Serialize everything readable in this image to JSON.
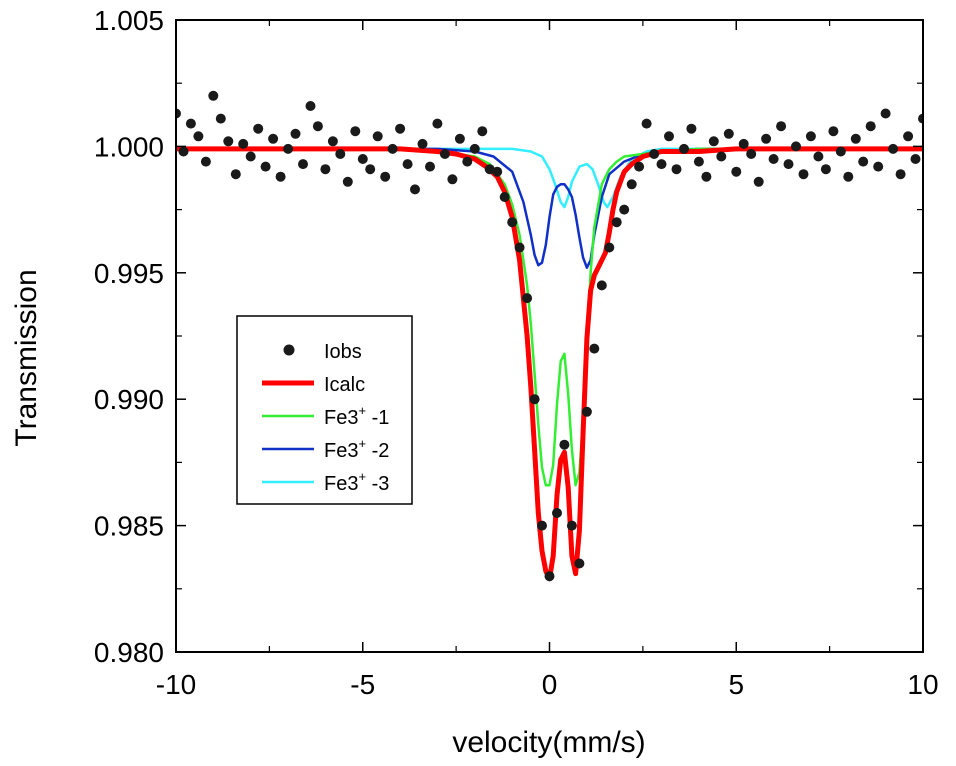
{
  "chart_data": {
    "type": "line",
    "xlabel": "velocity(mm/s)",
    "ylabel": "Transmission",
    "xlim": [
      -10,
      10
    ],
    "ylim": [
      0.98,
      1.005
    ],
    "x_ticks": [
      -10,
      -5,
      0,
      5,
      10
    ],
    "x_tick_labels": [
      "-10",
      "-5",
      "0",
      "5",
      "10"
    ],
    "y_ticks": [
      0.98,
      0.985,
      0.99,
      0.995,
      1.0,
      1.005
    ],
    "y_tick_labels": [
      "0.980",
      "0.985",
      "0.990",
      "0.995",
      "1.000",
      "1.005"
    ],
    "grid": false,
    "legend_position": "middle-left",
    "legend": [
      {
        "key": "iobs",
        "label": "Iobs",
        "style": "marker",
        "color": "#1a1a1a"
      },
      {
        "key": "icalc",
        "label": "Icalc",
        "style": "line",
        "color": "#ff0000"
      },
      {
        "key": "fe1",
        "label": "Fe3",
        "sup": "+",
        "suffix": " -1",
        "style": "line",
        "color": "#33ee33"
      },
      {
        "key": "fe2",
        "label": "Fe3",
        "sup": "+",
        "suffix": " -2",
        "style": "line",
        "color": "#1030c8"
      },
      {
        "key": "fe3",
        "label": "Fe3",
        "sup": "+",
        "suffix": " -3",
        "style": "line",
        "color": "#33eeff"
      }
    ],
    "series": [
      {
        "name": "Iobs",
        "kind": "scatter",
        "color": "#1a1a1a",
        "x": [
          -10,
          -9.8,
          -9.6,
          -9.4,
          -9.2,
          -9.0,
          -8.8,
          -8.6,
          -8.4,
          -8.2,
          -8.0,
          -7.8,
          -7.6,
          -7.4,
          -7.2,
          -7.0,
          -6.8,
          -6.6,
          -6.4,
          -6.2,
          -6.0,
          -5.8,
          -5.6,
          -5.4,
          -5.2,
          -5.0,
          -4.8,
          -4.6,
          -4.4,
          -4.2,
          -4.0,
          -3.8,
          -3.6,
          -3.4,
          -3.2,
          -3.0,
          -2.8,
          -2.6,
          -2.4,
          -2.2,
          -2.0,
          -1.8,
          -1.6,
          -1.4,
          -1.2,
          -1.0,
          -0.8,
          -0.6,
          -0.4,
          -0.2,
          0.0,
          0.2,
          0.4,
          0.6,
          0.8,
          1.0,
          1.2,
          1.4,
          1.6,
          1.8,
          2.0,
          2.2,
          2.4,
          2.6,
          2.8,
          3.0,
          3.2,
          3.4,
          3.6,
          3.8,
          4.0,
          4.2,
          4.4,
          4.6,
          4.8,
          5.0,
          5.2,
          5.4,
          5.6,
          5.8,
          6.0,
          6.2,
          6.4,
          6.6,
          6.8,
          7.0,
          7.2,
          7.4,
          7.6,
          7.8,
          8.0,
          8.2,
          8.4,
          8.6,
          8.8,
          9.0,
          9.2,
          9.4,
          9.6,
          9.8,
          10.0
        ],
        "y": [
          1.0013,
          0.9998,
          1.0009,
          1.0004,
          0.9994,
          1.002,
          1.0011,
          1.0002,
          0.9989,
          1.0001,
          0.9996,
          1.0007,
          0.9992,
          1.0003,
          0.9988,
          0.9999,
          1.0005,
          0.9993,
          1.0016,
          1.0008,
          0.9991,
          1.0002,
          0.9997,
          0.9986,
          1.0006,
          0.9995,
          0.9991,
          1.0004,
          0.9988,
          0.9999,
          1.0007,
          0.9993,
          0.9983,
          1.0001,
          0.9992,
          1.0009,
          0.9997,
          0.9987,
          1.0003,
          0.9994,
          0.9999,
          1.0006,
          0.9991,
          0.999,
          0.998,
          0.997,
          0.996,
          0.994,
          0.99,
          0.985,
          0.983,
          0.9855,
          0.9882,
          0.985,
          0.9835,
          0.9895,
          0.992,
          0.9945,
          0.996,
          0.997,
          0.9975,
          0.9985,
          0.9992,
          1.0009,
          0.9997,
          0.9993,
          1.0004,
          0.9991,
          0.9999,
          1.0007,
          0.9994,
          0.9988,
          1.0002,
          0.9996,
          1.0005,
          0.999,
          1.0001,
          0.9997,
          0.9986,
          1.0003,
          0.9995,
          1.0008,
          0.9993,
          1.0,
          0.9989,
          1.0004,
          0.9996,
          0.9991,
          1.0006,
          0.9998,
          0.9988,
          1.0003,
          0.9994,
          1.0008,
          0.9992,
          1.0013,
          0.9999,
          0.9989,
          1.0004,
          0.9995,
          1.0011
        ]
      },
      {
        "name": "Icalc",
        "kind": "line",
        "color": "#ff0000",
        "x": [
          -10,
          -8,
          -6,
          -4,
          -3,
          -2.5,
          -2,
          -1.7,
          -1.4,
          -1.2,
          -1.0,
          -0.8,
          -0.6,
          -0.5,
          -0.4,
          -0.3,
          -0.2,
          -0.1,
          0.0,
          0.1,
          0.2,
          0.3,
          0.4,
          0.5,
          0.6,
          0.7,
          0.8,
          0.9,
          1.0,
          1.1,
          1.2,
          1.3,
          1.4,
          1.5,
          1.6,
          1.7,
          1.8,
          2.0,
          2.2,
          2.5,
          3.0,
          3.5,
          4.0,
          5.0,
          6.0,
          8.0,
          10.0
        ],
        "y": [
          0.9999,
          0.9999,
          0.9999,
          0.9999,
          0.9998,
          0.9997,
          0.9995,
          0.9992,
          0.9988,
          0.9982,
          0.9972,
          0.9955,
          0.9925,
          0.9905,
          0.988,
          0.9855,
          0.984,
          0.9832,
          0.9829,
          0.9838,
          0.9862,
          0.9876,
          0.9879,
          0.9865,
          0.9838,
          0.9831,
          0.9848,
          0.9887,
          0.9924,
          0.9943,
          0.9949,
          0.9952,
          0.9955,
          0.9958,
          0.9966,
          0.9975,
          0.9982,
          0.999,
          0.9993,
          0.9996,
          0.9998,
          0.9998,
          0.9998,
          0.9999,
          0.9999,
          0.9999,
          0.9999
        ]
      },
      {
        "name": "Fe3+ -1",
        "kind": "line",
        "color": "#33ee33",
        "x": [
          -10,
          -8,
          -6,
          -4,
          -3,
          -2.5,
          -2,
          -1.6,
          -1.2,
          -1.0,
          -0.8,
          -0.6,
          -0.5,
          -0.4,
          -0.3,
          -0.2,
          -0.1,
          0.0,
          0.1,
          0.2,
          0.3,
          0.4,
          0.5,
          0.6,
          0.7,
          0.8,
          0.9,
          1.0,
          1.1,
          1.2,
          1.4,
          1.6,
          1.8,
          2.0,
          2.5,
          3.0,
          4.0,
          5.0,
          6.0,
          8.0,
          10.0
        ],
        "y": [
          0.9999,
          0.9999,
          0.9999,
          0.9999,
          0.9998,
          0.9997,
          0.9996,
          0.9993,
          0.9985,
          0.9977,
          0.9965,
          0.9945,
          0.993,
          0.991,
          0.989,
          0.9873,
          0.9866,
          0.9866,
          0.9874,
          0.9898,
          0.9915,
          0.9918,
          0.9902,
          0.988,
          0.9866,
          0.9871,
          0.9892,
          0.9922,
          0.995,
          0.9968,
          0.9985,
          0.9991,
          0.9994,
          0.9996,
          0.9997,
          0.9998,
          0.9999,
          0.9999,
          0.9999,
          0.9999,
          0.9999
        ]
      },
      {
        "name": "Fe3+ -2",
        "kind": "line",
        "color": "#1030c8",
        "x": [
          -10,
          -6,
          -4,
          -3,
          -2,
          -1.5,
          -1.0,
          -0.7,
          -0.5,
          -0.4,
          -0.3,
          -0.2,
          -0.1,
          0.0,
          0.1,
          0.2,
          0.3,
          0.4,
          0.5,
          0.6,
          0.7,
          0.8,
          0.9,
          1.0,
          1.1,
          1.2,
          1.4,
          1.6,
          2.0,
          2.5,
          3.0,
          4.0,
          6.0,
          10.0
        ],
        "y": [
          0.9999,
          0.9999,
          0.9999,
          0.9999,
          0.9998,
          0.9996,
          0.999,
          0.9978,
          0.9965,
          0.9957,
          0.9953,
          0.9954,
          0.9961,
          0.9972,
          0.9981,
          0.9984,
          0.9985,
          0.9985,
          0.9983,
          0.998,
          0.9973,
          0.9964,
          0.9956,
          0.9952,
          0.9955,
          0.9965,
          0.998,
          0.9989,
          0.9994,
          0.9997,
          0.9998,
          0.9999,
          0.9999,
          0.9999
        ]
      },
      {
        "name": "Fe3+ -3",
        "kind": "line",
        "color": "#33eeff",
        "x": [
          -10,
          -6,
          -4,
          -2,
          -1.0,
          -0.5,
          -0.2,
          0.0,
          0.15,
          0.3,
          0.4,
          0.5,
          0.6,
          0.8,
          1.0,
          1.15,
          1.3,
          1.45,
          1.55,
          1.7,
          1.9,
          2.2,
          2.6,
          3.0,
          4.0,
          6.0,
          10.0
        ],
        "y": [
          0.9999,
          0.9999,
          0.9999,
          0.9999,
          0.9999,
          0.9998,
          0.9996,
          0.9991,
          0.9985,
          0.9978,
          0.9976,
          0.998,
          0.9986,
          0.9992,
          0.9993,
          0.9991,
          0.9985,
          0.9978,
          0.9976,
          0.998,
          0.9988,
          0.9995,
          0.9998,
          0.9999,
          0.9999,
          0.9999,
          0.9999
        ]
      }
    ]
  }
}
